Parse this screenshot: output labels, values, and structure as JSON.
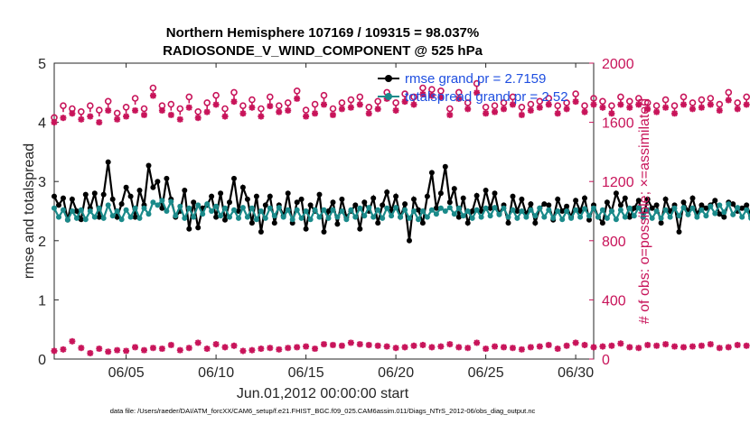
{
  "chart_data": {
    "type": "line",
    "title_line1": "Northern Hemisphere 107169 / 109315 = 98.037%",
    "title_line2": "RADIOSONDE_V_WIND_COMPONENT @ 525 hPa",
    "xlabel": "Jun.01,2012 00:00:00 start",
    "ylabel_left": "rmse and totalspread",
    "ylabel_right": "# of obs: o=possible; ×=assimilated",
    "x_range": [
      1.0,
      31.0
    ],
    "ylim_left": [
      0,
      5
    ],
    "ylim_right": [
      0,
      2000
    ],
    "x_ticks": [
      5,
      10,
      15,
      20,
      25,
      30
    ],
    "x_tick_labels": [
      "06/05",
      "06/10",
      "06/15",
      "06/20",
      "06/25",
      "06/30"
    ],
    "y_ticks_left": [
      0,
      1,
      2,
      3,
      4,
      5
    ],
    "y_tick_labels_left": [
      "0",
      "1",
      "2",
      "3",
      "4",
      "5"
    ],
    "y_ticks_right": [
      0,
      400,
      800,
      1200,
      1600,
      2000
    ],
    "y_tick_labels_right": [
      "0",
      "400",
      "800",
      "1200",
      "1600",
      "2000"
    ],
    "legend": [
      {
        "label": "rmse grand pr = 2.7159",
        "color": "#000000"
      },
      {
        "label": "totalspread grand pr = 2.52",
        "color": "#1a8a8a"
      }
    ],
    "series": [
      {
        "name": "rmse",
        "axis": "left",
        "color": "#000000",
        "x_start": 1.0,
        "x_step": 0.25,
        "values": [
          2.75,
          2.6,
          2.72,
          2.35,
          2.7,
          2.5,
          2.36,
          2.78,
          2.55,
          2.8,
          2.4,
          2.78,
          3.33,
          2.7,
          2.4,
          2.62,
          2.9,
          2.75,
          2.4,
          2.85,
          2.6,
          3.27,
          2.9,
          3.0,
          2.55,
          3.05,
          2.7,
          2.4,
          2.5,
          2.85,
          2.2,
          2.65,
          2.22,
          2.55,
          2.6,
          2.75,
          2.4,
          2.8,
          2.35,
          2.65,
          3.05,
          2.5,
          2.9,
          2.7,
          2.3,
          2.75,
          2.15,
          2.6,
          2.75,
          2.3,
          2.6,
          2.42,
          2.8,
          2.3,
          2.65,
          2.7,
          2.2,
          2.6,
          2.5,
          2.78,
          2.15,
          2.5,
          2.65,
          2.28,
          2.7,
          2.4,
          2.5,
          2.6,
          2.2,
          2.65,
          2.5,
          2.72,
          2.3,
          2.6,
          2.82,
          2.5,
          2.75,
          2.4,
          2.62,
          2.0,
          2.7,
          2.52,
          2.3,
          2.75,
          3.15,
          2.55,
          2.8,
          3.25,
          2.65,
          2.88,
          2.4,
          2.72,
          2.3,
          2.5,
          2.76,
          2.5,
          2.85,
          2.55,
          2.8,
          2.45,
          2.6,
          2.3,
          2.75,
          2.5,
          2.7,
          2.45,
          2.62,
          2.3,
          2.55,
          2.62,
          2.6,
          2.35,
          2.7,
          2.5,
          2.58,
          2.4,
          2.68,
          2.5,
          2.72,
          2.35,
          2.6,
          2.4,
          2.3,
          2.65,
          2.5,
          2.8,
          2.6,
          2.72,
          2.4,
          2.55,
          2.68,
          2.4,
          2.7,
          2.55,
          2.6,
          2.3,
          2.7,
          2.5,
          2.6,
          2.15,
          2.65,
          2.5,
          2.72,
          2.45,
          2.6,
          2.55,
          2.6,
          2.68,
          2.45,
          2.4,
          2.65,
          2.62,
          2.5,
          2.55,
          2.6,
          2.42,
          2.72,
          2.65,
          2.55,
          2.45,
          2.7,
          2.55,
          2.32,
          2.6,
          2.5,
          2.45,
          2.65,
          2.4,
          2.62,
          2.68,
          2.35,
          2.55,
          2.6,
          2.4,
          2.75,
          2.35,
          2.6,
          2.55,
          2.6,
          2.4,
          2.7,
          2.3,
          2.75,
          2.5,
          2.58,
          2.5,
          2.65,
          2.72,
          2.3,
          2.6,
          2.52,
          2.72,
          2.68,
          2.75,
          2.45,
          2.7,
          2.55,
          2.62,
          2.48,
          2.42,
          2.6,
          2.3,
          2.7,
          2.45,
          2.65,
          2.32,
          2.6,
          2.4,
          2.65,
          2.25,
          2.6,
          2.5,
          2.62,
          2.35,
          2.55,
          2.4,
          2.7,
          2.5,
          2.6,
          2.42,
          2.58,
          2.35,
          2.65,
          2.5,
          2.4,
          2.5,
          2.6,
          2.52,
          2.7,
          2.4
        ]
      },
      {
        "name": "totalspread",
        "axis": "left",
        "color": "#1a8a8a",
        "x_start": 1.0,
        "x_step": 0.25,
        "values": [
          2.55,
          2.4,
          2.52,
          2.35,
          2.5,
          2.38,
          2.52,
          2.36,
          2.5,
          2.4,
          2.55,
          2.38,
          2.6,
          2.42,
          2.5,
          2.36,
          2.52,
          2.4,
          2.55,
          2.38,
          2.55,
          2.45,
          2.65,
          2.6,
          2.68,
          2.5,
          2.66,
          2.42,
          2.58,
          2.38,
          2.55,
          2.4,
          2.6,
          2.45,
          2.62,
          2.5,
          2.58,
          2.42,
          2.55,
          2.4,
          2.52,
          2.38,
          2.56,
          2.4,
          2.55,
          2.36,
          2.5,
          2.38,
          2.55,
          2.42,
          2.56,
          2.4,
          2.52,
          2.36,
          2.52,
          2.38,
          2.5,
          2.36,
          2.52,
          2.4,
          2.52,
          2.38,
          2.52,
          2.4,
          2.5,
          2.36,
          2.52,
          2.4,
          2.55,
          2.42,
          2.56,
          2.4,
          2.52,
          2.38,
          2.55,
          2.42,
          2.56,
          2.4,
          2.52,
          2.38,
          2.5,
          2.36,
          2.5,
          2.4,
          2.52,
          2.45,
          2.55,
          2.5,
          2.56,
          2.45,
          2.55,
          2.42,
          2.5,
          2.38,
          2.52,
          2.4,
          2.55,
          2.42,
          2.56,
          2.44,
          2.55,
          2.4,
          2.52,
          2.38,
          2.5,
          2.4,
          2.52,
          2.42,
          2.55,
          2.4,
          2.52,
          2.38,
          2.5,
          2.36,
          2.5,
          2.38,
          2.52,
          2.4,
          2.54,
          2.42,
          2.55,
          2.4,
          2.52,
          2.38,
          2.5,
          2.36,
          2.52,
          2.4,
          2.55,
          2.42,
          2.56,
          2.4,
          2.52,
          2.38,
          2.5,
          2.38,
          2.52,
          2.4,
          2.55,
          2.42,
          2.56,
          2.44,
          2.55,
          2.4,
          2.52,
          2.42,
          2.58,
          2.46,
          2.6,
          2.48,
          2.62,
          2.44,
          2.56,
          2.4,
          2.52,
          2.38,
          2.5,
          2.36,
          2.5,
          2.38,
          2.52,
          2.4,
          2.54,
          2.42,
          2.55,
          2.4,
          2.52,
          2.38,
          2.5,
          2.36,
          2.52,
          2.4,
          2.55,
          2.42,
          2.56,
          2.4,
          2.52,
          2.38,
          2.5,
          2.38,
          2.52,
          2.4,
          2.54,
          2.42,
          2.55,
          2.4,
          2.52,
          2.38,
          2.5,
          2.36,
          2.5,
          2.38,
          2.52,
          2.4,
          2.55,
          2.42,
          2.56,
          2.44,
          2.55,
          2.4,
          2.52,
          2.38,
          2.5,
          2.36,
          2.5,
          2.38,
          2.52,
          2.4,
          2.54,
          2.42,
          2.55,
          2.4,
          2.52,
          2.38,
          2.5,
          2.36,
          2.5,
          2.38,
          2.52,
          2.4,
          2.55,
          2.42,
          2.52,
          2.38,
          2.5,
          2.36,
          2.5,
          2.35
        ]
      },
      {
        "name": "obs possible",
        "axis": "right",
        "color": "#c8145a",
        "marker": "circle",
        "x_start": 1.0,
        "x_step": 0.5,
        "values": [
          1620,
          1700,
          1680,
          1660,
          1700,
          1670,
          1730,
          1650,
          1690,
          1750,
          1680,
          1820,
          1700,
          1710,
          1680,
          1760,
          1660,
          1720,
          1770,
          1680,
          1790,
          1700,
          1740,
          1680,
          1760,
          1700,
          1720,
          1800,
          1670,
          1710,
          1770,
          1680,
          1720,
          1740,
          1760,
          1690,
          1730,
          1790,
          1720,
          1780,
          1760,
          1820,
          1810,
          1800,
          1680,
          1790,
          1720,
          1850,
          1690,
          1700,
          1720,
          1760,
          1690,
          1710,
          1730,
          1750,
          1700,
          1720,
          1780,
          1700,
          1750,
          1730,
          1700,
          1760,
          1730,
          1750,
          1720,
          1700,
          1740,
          1700,
          1760,
          1720,
          1740,
          1750,
          1710,
          1790,
          1720,
          1760,
          1710,
          1730,
          1760,
          1700,
          1790,
          1740,
          1720,
          1770,
          1790,
          1730,
          1720,
          1760,
          1720,
          1750,
          1700,
          1740,
          1720,
          1760,
          1700,
          1720,
          1800,
          1720,
          1760,
          1730,
          1790,
          1720,
          1750,
          1780,
          1700,
          1760,
          1720,
          1770,
          1740,
          1690,
          1760,
          1700,
          1760,
          1720,
          1690,
          1740,
          1690,
          1720,
          1650
        ]
      },
      {
        "name": "obs assimilated",
        "axis": "right",
        "color": "#c8145a",
        "marker": "star",
        "x_start": 1.0,
        "x_step": 0.5,
        "values": [
          1600,
          1630,
          1660,
          1620,
          1640,
          1600,
          1680,
          1620,
          1640,
          1680,
          1650,
          1780,
          1680,
          1650,
          1620,
          1700,
          1630,
          1670,
          1720,
          1640,
          1740,
          1660,
          1700,
          1640,
          1710,
          1670,
          1680,
          1760,
          1640,
          1660,
          1720,
          1650,
          1690,
          1700,
          1720,
          1660,
          1690,
          1760,
          1680,
          1740,
          1720,
          1790,
          1780,
          1770,
          1650,
          1760,
          1690,
          1800,
          1660,
          1670,
          1690,
          1720,
          1650,
          1680,
          1700,
          1720,
          1660,
          1690,
          1740,
          1670,
          1720,
          1700,
          1660,
          1720,
          1700,
          1720,
          1690,
          1670,
          1700,
          1660,
          1720,
          1690,
          1700,
          1720,
          1680,
          1750,
          1690,
          1720,
          1680,
          1700,
          1720,
          1670,
          1760,
          1700,
          1690,
          1740,
          1760,
          1700,
          1690,
          1720,
          1690,
          1720,
          1670,
          1700,
          1690,
          1720,
          1670,
          1690,
          1770,
          1690,
          1720,
          1700,
          1760,
          1690,
          1720,
          1750,
          1670,
          1720,
          1690,
          1730,
          1710,
          1660,
          1720,
          1670,
          1720,
          1690,
          1660,
          1700,
          1650,
          1690,
          1620
        ]
      },
      {
        "name": "obs count low",
        "axis": "right",
        "color": "#c8145a",
        "marker": "star",
        "x_start": 1.0,
        "x_step": 0.5,
        "values": [
          55,
          65,
          120,
          75,
          40,
          70,
          50,
          60,
          55,
          80,
          60,
          75,
          70,
          95,
          60,
          75,
          110,
          70,
          100,
          80,
          90,
          55,
          60,
          70,
          75,
          65,
          75,
          80,
          85,
          70,
          100,
          95,
          90,
          110,
          100,
          95,
          90,
          85,
          75,
          80,
          90,
          95,
          80,
          85,
          100,
          80,
          75,
          110,
          70,
          85,
          80,
          75,
          65,
          80,
          85,
          95,
          70,
          90,
          110,
          95,
          80,
          85,
          90,
          105,
          80,
          75,
          95,
          90,
          100,
          85,
          80,
          85,
          90,
          100,
          75,
          80,
          95,
          90,
          80,
          75,
          70,
          60,
          65,
          70,
          65,
          70,
          60,
          75,
          80,
          180,
          165,
          190,
          175,
          185,
          170,
          110,
          75,
          80,
          70,
          75,
          80,
          70,
          75,
          90,
          75,
          80,
          65,
          80,
          85,
          75,
          90,
          85,
          110,
          75,
          65,
          60,
          70,
          75,
          80,
          75,
          10
        ]
      }
    ],
    "footer": "data file: /Users/raeder/DAI/ATM_forcXX/CAM6_setup/f.e21.FHIST_BGC.f09_025.CAM6assim.011/Diags_NTrS_2012-06/obs_diag_output.nc"
  }
}
